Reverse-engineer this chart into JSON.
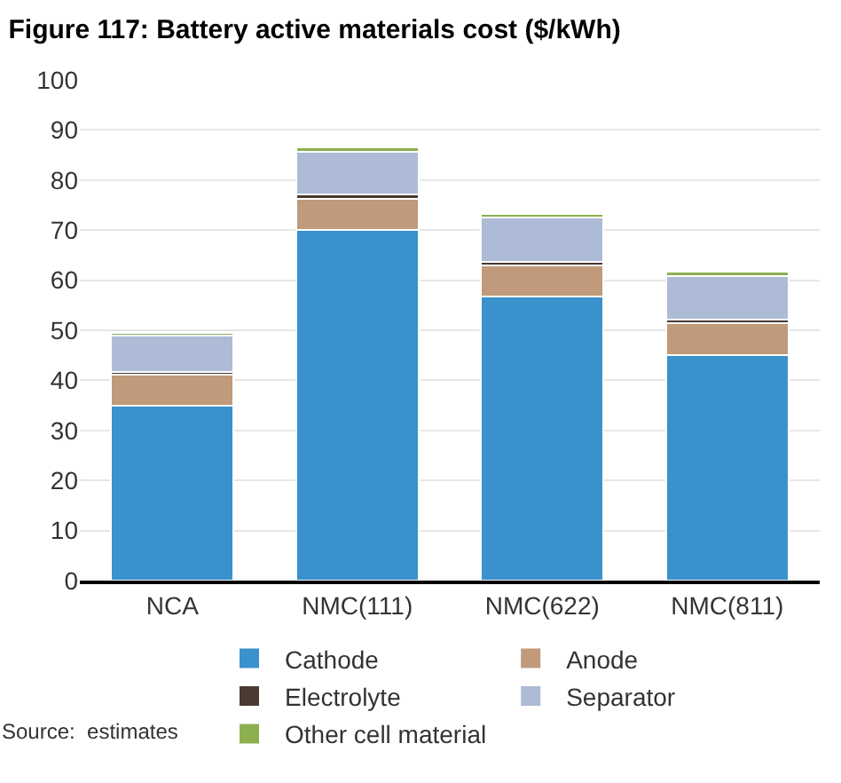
{
  "chart_data": {
    "type": "bar",
    "title": "Figure 117: Battery active materials cost ($/kWh)",
    "categories": [
      "NCA",
      "NMC(111)",
      "NMC(622)",
      "NMC(811)"
    ],
    "series": [
      {
        "name": "Cathode",
        "color": "#3a91cb",
        "values": [
          35,
          70,
          56.7,
          45.1
        ]
      },
      {
        "name": "Anode",
        "color": "#c09a7a",
        "values": [
          6.1,
          6.2,
          6.2,
          6.4
        ]
      },
      {
        "name": "Electrolyte",
        "color": "#4a3a32",
        "values": [
          0.6,
          0.9,
          0.8,
          0.7
        ]
      },
      {
        "name": "Separator",
        "color": "#adbbd6",
        "values": [
          7.2,
          8.6,
          8.9,
          8.7
        ]
      },
      {
        "name": "Other cell material",
        "color": "#8cb050",
        "values": [
          0.5,
          0.9,
          0.7,
          0.8
        ]
      }
    ],
    "stacked": true,
    "ylim": [
      0,
      100
    ],
    "yticks": [
      0,
      10,
      20,
      30,
      40,
      50,
      60,
      70,
      80,
      90,
      100
    ],
    "grid": "y",
    "legend": "bottom",
    "annotations": [
      "Source:  estimates"
    ]
  }
}
